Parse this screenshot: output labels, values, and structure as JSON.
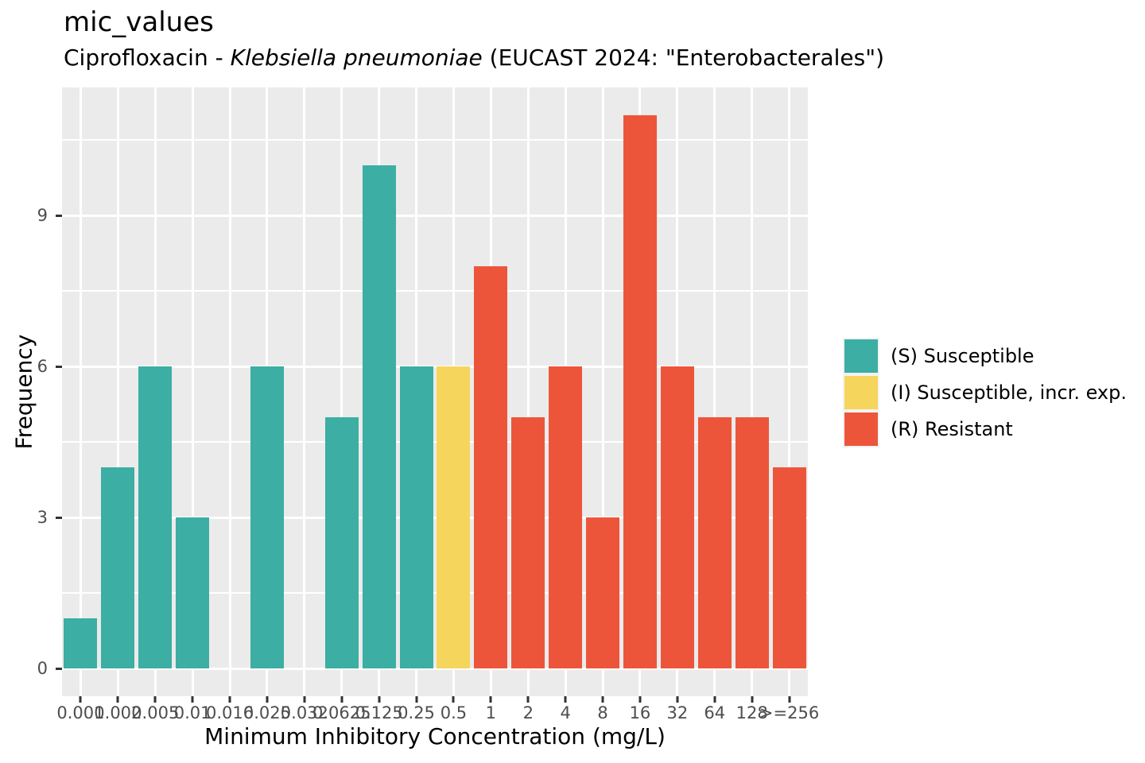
{
  "title": "mic_values",
  "subtitle": {
    "prefix": "Ciprofloxacin - ",
    "species_italic": "Klebsiella pneumoniae",
    "suffix": " (EUCAST 2024: \"Enterobacterales\")"
  },
  "axes": {
    "x_title": "Minimum Inhibitory Concentration (mg/L)",
    "y_title": "Frequency",
    "y_tick_labels": [
      "0",
      "3",
      "6",
      "9"
    ]
  },
  "legend": {
    "items": [
      {
        "key": "S",
        "label": "(S) Susceptible",
        "color": "#3CAEA3"
      },
      {
        "key": "I",
        "label": "(I) Susceptible, incr. exp.",
        "color": "#F6D55C"
      },
      {
        "key": "R",
        "label": "(R) Resistant",
        "color": "#ED553B"
      }
    ]
  },
  "chart_data": {
    "type": "bar",
    "title": "mic_values",
    "subtitle": "Ciprofloxacin - Klebsiella pneumoniae (EUCAST 2024: \"Enterobacterales\")",
    "xlabel": "Minimum Inhibitory Concentration (mg/L)",
    "ylabel": "Frequency",
    "categories": [
      "0.001",
      "0.002",
      "0.005",
      "0.01",
      "0.016",
      "0.025",
      "0.032",
      "0.0625",
      "0.125",
      "0.25",
      "0.5",
      "1",
      "2",
      "4",
      "8",
      "16",
      "32",
      "64",
      "128",
      ">=256"
    ],
    "values": [
      1,
      4,
      6,
      3,
      0,
      6,
      0,
      5,
      10,
      6,
      6,
      8,
      5,
      6,
      3,
      11,
      6,
      5,
      5,
      4
    ],
    "interpretation": [
      "S",
      "S",
      "S",
      "S",
      null,
      "S",
      null,
      "S",
      "S",
      "S",
      "I",
      "R",
      "R",
      "R",
      "R",
      "R",
      "R",
      "R",
      "R",
      "R"
    ],
    "series_colors": {
      "S": "#3CAEA3",
      "I": "#F6D55C",
      "R": "#ED553B"
    },
    "yticks": [
      0,
      3,
      6,
      9
    ],
    "yticks_minor": [
      1.5,
      4.5,
      7.5,
      10.5
    ],
    "ylim": [
      0,
      11.55
    ],
    "grid": true,
    "legend_position": "right",
    "panel_background": "#EBEBEB",
    "grid_color": "#FFFFFF",
    "axis_text_color": "#4D4D4D",
    "tick_mark_color": "#333333"
  }
}
